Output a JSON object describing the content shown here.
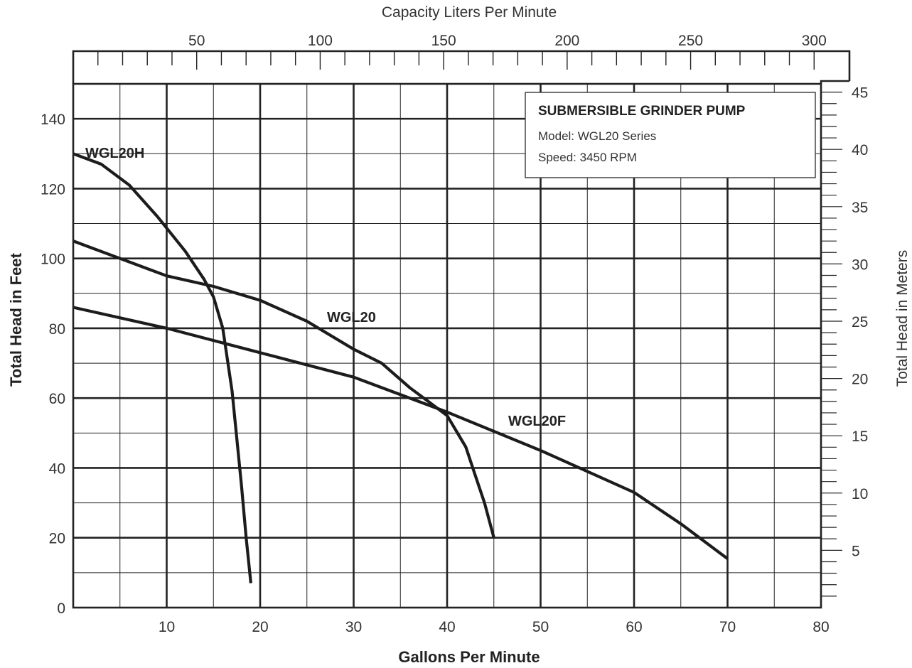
{
  "chart_data": {
    "type": "line",
    "title": "SUBMERSIBLE GRINDER PUMP",
    "info_lines": [
      "Model:  WGL20 Series",
      "Speed: 3450 RPM"
    ],
    "xlabel": "Gallons Per Minute",
    "ylabel": "Total Head in Feet",
    "x2label": "Capacity Liters Per Minute",
    "y2label": "Total Head in Meters",
    "xlim": [
      0,
      80
    ],
    "ylim": [
      0,
      150
    ],
    "x2lim": [
      0,
      302.8
    ],
    "y2lim": [
      0,
      45.72
    ],
    "xticks": [
      10,
      20,
      30,
      40,
      50,
      60,
      70,
      80
    ],
    "yticks": [
      0,
      20,
      40,
      60,
      80,
      100,
      120,
      140
    ],
    "x2ticks": [
      50,
      100,
      150,
      200,
      250,
      300
    ],
    "y2ticks": [
      5,
      10,
      15,
      20,
      25,
      30,
      35,
      40,
      45
    ],
    "grid": true,
    "series": [
      {
        "name": "WGL20H",
        "points": [
          [
            0,
            130
          ],
          [
            3,
            127
          ],
          [
            6,
            121
          ],
          [
            9,
            112
          ],
          [
            12,
            102
          ],
          [
            14,
            94
          ],
          [
            15,
            89
          ],
          [
            16,
            80
          ],
          [
            17,
            62
          ],
          [
            18,
            35
          ],
          [
            18.5,
            20
          ],
          [
            19,
            7
          ]
        ]
      },
      {
        "name": "WGL20",
        "points": [
          [
            0,
            105
          ],
          [
            5,
            100
          ],
          [
            10,
            95
          ],
          [
            15,
            92
          ],
          [
            20,
            88
          ],
          [
            25,
            82
          ],
          [
            30,
            74
          ],
          [
            33,
            70
          ],
          [
            36,
            63
          ],
          [
            38,
            59
          ],
          [
            40,
            55
          ],
          [
            42,
            46
          ],
          [
            43,
            38
          ],
          [
            44,
            30
          ],
          [
            45,
            20
          ]
        ]
      },
      {
        "name": "WGL20F",
        "points": [
          [
            0,
            86
          ],
          [
            10,
            80
          ],
          [
            20,
            73
          ],
          [
            30,
            66
          ],
          [
            40,
            56
          ],
          [
            50,
            45
          ],
          [
            60,
            33
          ],
          [
            65,
            24
          ],
          [
            70,
            14
          ]
        ]
      }
    ]
  }
}
